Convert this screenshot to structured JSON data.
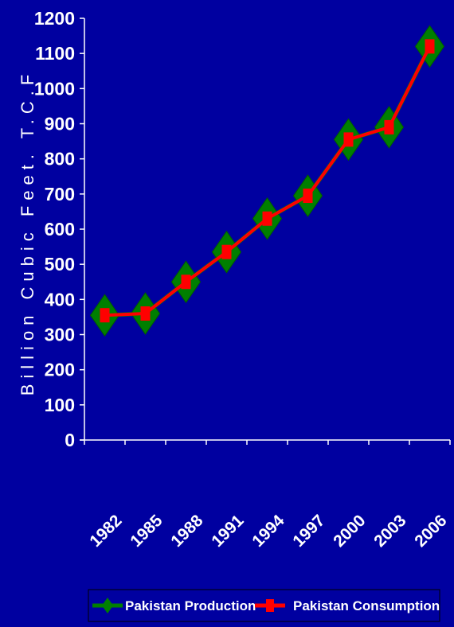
{
  "chart_data": {
    "type": "line",
    "x": [
      "1982",
      "1985",
      "1988",
      "1991",
      "1994",
      "1997",
      "2000",
      "2003",
      "2006"
    ],
    "series": [
      {
        "name": "Pakistan Production",
        "values": [
          355,
          360,
          450,
          535,
          630,
          695,
          855,
          890,
          1120
        ],
        "color": "#007f00",
        "marker": "diamond"
      },
      {
        "name": "Pakistan Consumption",
        "values": [
          355,
          360,
          450,
          535,
          630,
          695,
          855,
          890,
          1120
        ],
        "color": "#ff0000",
        "marker": "square"
      }
    ],
    "ylabel": "Billion Cubic Feet. T.C.F",
    "xlabel": "",
    "ylim": [
      0,
      1200
    ],
    "yticks": [
      "0",
      "100",
      "200",
      "300",
      "400",
      "500",
      "600",
      "700",
      "800",
      "900",
      "1000",
      "1100",
      "1200"
    ],
    "grid": false,
    "legend_position": "bottom",
    "colors": {
      "background": "#0000a0",
      "axis": "#ffffff",
      "text": "#ffffff",
      "legend_border": "#000000"
    }
  }
}
